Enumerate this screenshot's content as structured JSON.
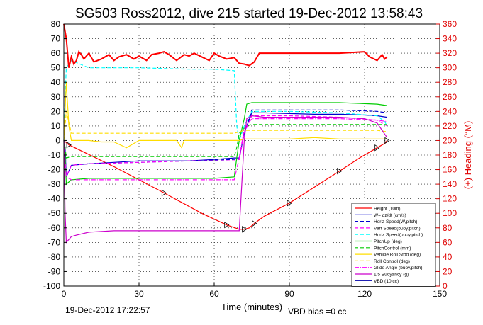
{
  "chart_data": {
    "type": "line",
    "title": "SG503 Ross2012, dive 215 started 19-Dec-2012 13:58:43",
    "xlabel": "Time (minutes)",
    "ylabel_right": "(+) Heading (°M)",
    "footer_left": "19-Dec-2012 17:22:57",
    "footer_right": "VBD bias =0 cc",
    "xlim": [
      0,
      150
    ],
    "ylim_left": [
      -100,
      80
    ],
    "ylim_right": [
      0,
      360
    ],
    "x_ticks": [
      0,
      30,
      60,
      90,
      120,
      150
    ],
    "y_ticks_left": [
      -100,
      -90,
      -80,
      -70,
      -60,
      -50,
      -40,
      -30,
      -20,
      -10,
      0,
      10,
      20,
      30,
      40,
      50,
      60,
      70,
      80
    ],
    "y_ticks_right": [
      0,
      20,
      40,
      60,
      80,
      100,
      120,
      140,
      160,
      180,
      200,
      220,
      240,
      260,
      280,
      300,
      320,
      340,
      360
    ],
    "grid": true,
    "legend_position": "bottom-right",
    "series": [
      {
        "name": "Height (10m)",
        "color": "#ff0000",
        "style": "solid",
        "x": [
          0,
          2,
          20,
          40,
          55,
          65,
          70,
          72,
          74,
          76,
          80,
          90,
          100,
          110,
          118,
          125,
          128,
          129
        ],
        "y": [
          0,
          -3,
          -18,
          -36,
          -50,
          -58,
          -61,
          -61,
          -60,
          -57,
          -52,
          -43,
          -32,
          -21,
          -12,
          -5,
          -2,
          0
        ]
      },
      {
        "name": "W= dz/dt (cm/s)",
        "color": "#0000cc",
        "style": "solid",
        "x": [
          0,
          0.5,
          1,
          3,
          10,
          20,
          30,
          40,
          50,
          60,
          68,
          70,
          72,
          73,
          75,
          80,
          90,
          100,
          110,
          120,
          125,
          129
        ],
        "y": [
          0,
          -5,
          -25,
          -17,
          -16,
          -15,
          -14,
          -14,
          -14,
          -13,
          -12,
          -12,
          5,
          10,
          19,
          19,
          18.5,
          18,
          18,
          17.5,
          17,
          16
        ]
      },
      {
        "name": "Horiz Speed(W,pitch)",
        "color": "#0000cc",
        "style": "dashed",
        "x": [
          0,
          0.5,
          1,
          3,
          10,
          30,
          50,
          68,
          70,
          72,
          75,
          90,
          110,
          125,
          129
        ],
        "y": [
          0,
          -5,
          -25,
          -17,
          -16,
          -15,
          -14,
          -13,
          -13,
          5,
          21,
          21,
          21,
          20,
          19
        ]
      },
      {
        "name": "Vert Speed(buoy,pitch)",
        "color": "#ff00ff",
        "style": "dashed",
        "x": [
          0,
          0.5,
          1,
          3,
          10,
          30,
          50,
          68,
          70,
          72,
          75,
          90,
          110,
          125,
          129
        ],
        "y": [
          0,
          -10,
          -25,
          -17,
          -16,
          -15,
          -14,
          -14,
          -13,
          5,
          17,
          17,
          16,
          14,
          10
        ]
      },
      {
        "name": "Horiz Speed(buoy,pitch)",
        "color": "#00ffff",
        "style": "dashed",
        "x": [
          0,
          0.5,
          1,
          3,
          10,
          30,
          50,
          60,
          68,
          69,
          70,
          72,
          75,
          90,
          110,
          125,
          128,
          129
        ],
        "y": [
          0,
          30,
          50,
          55,
          50,
          50,
          49,
          49,
          48,
          10,
          0,
          10,
          20,
          20,
          19,
          17,
          13,
          10
        ]
      },
      {
        "name": "PitchUp (deg)",
        "color": "#00cc00",
        "style": "solid",
        "x": [
          0,
          0.5,
          1,
          3,
          10,
          20,
          40,
          60,
          68,
          69,
          70,
          72,
          73,
          75,
          90,
          110,
          125,
          129
        ],
        "y": [
          0,
          -10,
          -30,
          -27,
          -26,
          -26,
          -26,
          -26,
          -25,
          -12,
          0,
          15,
          25,
          26,
          26,
          26,
          25,
          24
        ]
      },
      {
        "name": "PitchControl (mm)",
        "color": "#00cc00",
        "style": "dashed",
        "x": [
          0,
          0.5,
          1,
          3,
          10,
          30,
          50,
          68,
          69,
          70,
          73,
          75,
          90,
          110,
          125,
          129
        ],
        "y": [
          0,
          -5,
          -12,
          -11,
          -11,
          -11,
          -11,
          -11,
          -5,
          5,
          10,
          11,
          11,
          11,
          11,
          11
        ]
      },
      {
        "name": "Vehicle Roll Stbd (deg)",
        "color": "#ffdd00",
        "style": "solid",
        "x": [
          0,
          1,
          2,
          3,
          5,
          10,
          15,
          20,
          25,
          30,
          35,
          40,
          45,
          47,
          48,
          50,
          55,
          60,
          65,
          68,
          70,
          72,
          75,
          80,
          90,
          100,
          110,
          120,
          125,
          129
        ],
        "y": [
          0,
          40,
          10,
          0,
          0,
          0,
          -1,
          -1,
          -5,
          0,
          0,
          0,
          0,
          -5,
          0,
          0,
          0,
          0,
          0,
          0,
          0,
          1,
          1,
          1,
          1,
          2,
          1,
          1,
          1,
          1
        ]
      },
      {
        "name": "Roll Control (deg)",
        "color": "#ffdd00",
        "style": "dashed",
        "x": [
          0,
          1,
          3,
          10,
          30,
          50,
          68,
          70,
          72,
          75,
          90,
          110,
          125,
          129
        ],
        "y": [
          0,
          20,
          5,
          5,
          5,
          5,
          5,
          6,
          7,
          7,
          7,
          7,
          7,
          6
        ]
      },
      {
        "name": "Glide Angle (buoy,pitch)",
        "color": "#ff00ff",
        "style": "dashdot",
        "x": [
          0,
          0.5,
          1,
          3,
          10,
          30,
          50,
          68,
          70,
          72,
          75,
          90,
          110,
          125,
          129
        ],
        "y": [
          0,
          -15,
          -25,
          -27,
          -27,
          -27,
          -27,
          -27,
          -12,
          8,
          15,
          15,
          15,
          14,
          13
        ]
      },
      {
        "name": "1/5 Buoyancy (g)",
        "color": "#cc00cc",
        "style": "solid",
        "x": [
          0,
          0.5,
          1,
          2,
          3,
          5,
          10,
          20,
          30,
          40,
          50,
          60,
          68,
          70,
          71,
          72,
          73,
          75,
          80,
          90,
          100,
          110,
          120,
          125,
          129
        ],
        "y": [
          0,
          -50,
          -70,
          -68,
          -66,
          -65,
          -63,
          -62,
          -62,
          -62,
          -62,
          -62,
          -62,
          -62,
          -30,
          0,
          15,
          17,
          16,
          16,
          16,
          16,
          15,
          12,
          2
        ]
      },
      {
        "name": "VBD (10 cc)",
        "color": "#0000aa",
        "style": "solid",
        "x": [],
        "y": []
      }
    ],
    "heading_series": {
      "name": "Heading",
      "axis": "right",
      "color": "#ff0000",
      "x": [
        0,
        1,
        2,
        3,
        4,
        5,
        6,
        7,
        8,
        10,
        12,
        15,
        18,
        20,
        22,
        25,
        28,
        30,
        33,
        35,
        38,
        40,
        42,
        45,
        48,
        50,
        52,
        55,
        58,
        60,
        62,
        65,
        68,
        70,
        72,
        74,
        76,
        78,
        80,
        85,
        90,
        95,
        100,
        105,
        110,
        115,
        120,
        122,
        125,
        127,
        128,
        129
      ],
      "y": [
        360,
        340,
        300,
        315,
        305,
        310,
        322,
        318,
        312,
        320,
        308,
        312,
        318,
        310,
        315,
        318,
        312,
        316,
        310,
        318,
        320,
        322,
        318,
        310,
        318,
        316,
        320,
        315,
        310,
        320,
        316,
        312,
        314,
        306,
        305,
        303,
        308,
        320,
        320,
        320,
        320,
        320,
        320,
        320,
        320,
        321,
        322,
        315,
        310,
        318,
        312,
        315
      ]
    }
  }
}
